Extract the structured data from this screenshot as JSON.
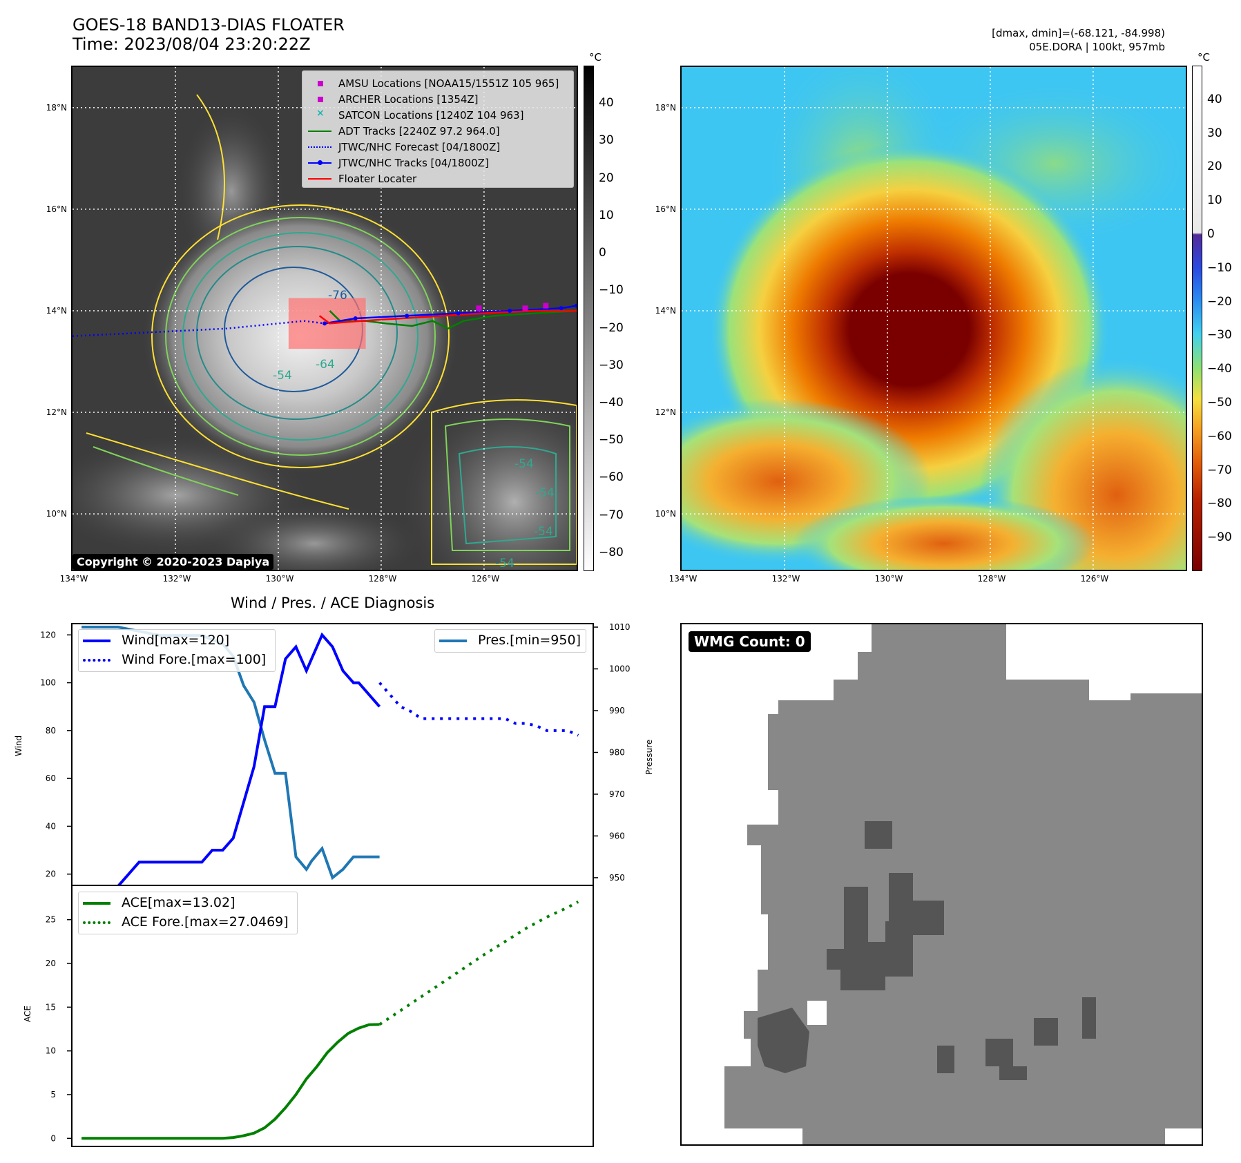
{
  "header": {
    "title_line1": "GOES-18 BAND13-DIAS FLOATER",
    "title_line2": "Time: 2023/08/04 23:20:22Z",
    "right_line1": "[dmax, dmin]=(-68.121, -84.998)",
    "right_line2": "05E.DORA | 100kt, 957mb"
  },
  "copyright": "Copyright © 2020-2023 Dapiya",
  "maps": {
    "lat_labels": [
      "18°N",
      "16°N",
      "14°N",
      "12°N",
      "10°N"
    ],
    "lat_values": [
      18,
      16,
      14,
      12,
      10
    ],
    "lon_labels": [
      "134°W",
      "132°W",
      "130°W",
      "128°W",
      "126°W"
    ],
    "lon_values": [
      -134,
      -132,
      -130,
      -128,
      -126
    ],
    "extent": {
      "lon_min": -134,
      "lon_max": -124.2,
      "lat_min": 8.9,
      "lat_max": 18.8
    },
    "unit": "°C",
    "gray_colorbar": {
      "range": [
        -85,
        50
      ],
      "ticks": [
        40,
        30,
        20,
        10,
        0,
        -10,
        -20,
        -30,
        -40,
        -50,
        -60,
        -70,
        -80
      ]
    },
    "color_colorbar": {
      "range": [
        -100,
        50
      ],
      "ticks": [
        40,
        30,
        20,
        10,
        0,
        -10,
        -20,
        -30,
        -40,
        -50,
        -60,
        -70,
        -80,
        -90
      ]
    },
    "contour_labels": [
      "-76",
      "-54",
      "-64",
      "-54",
      "-54",
      "-54",
      "-54"
    ],
    "legend": [
      {
        "label": "AMSU Locations [NOAA15/1551Z 105 965]",
        "color": "#cc00cc",
        "marker": "square"
      },
      {
        "label": "ARCHER Locations [1354Z]",
        "color": "#cc00cc",
        "marker": "square"
      },
      {
        "label": "SATCON Locations [1240Z 104 963]",
        "color": "#1fb8b0",
        "marker": "x"
      },
      {
        "label": "ADT Tracks [2240Z 97.2 964.0]",
        "color": "#008000",
        "marker": "line"
      },
      {
        "label": "JTWC/NHC Forecast [04/1800Z]",
        "color": "#0000ff",
        "marker": "dotted"
      },
      {
        "label": "JTWC/NHC Tracks [04/1800Z]",
        "color": "#0000ff",
        "marker": "line-dot"
      },
      {
        "label": "Floater Locater",
        "color": "#ff0000",
        "marker": "line"
      }
    ],
    "jtwc_track": [
      [
        -129.1,
        13.75
      ],
      [
        -128.5,
        13.85
      ],
      [
        -127.5,
        13.9
      ],
      [
        -126.5,
        13.95
      ],
      [
        -125.5,
        14.0
      ],
      [
        -124.5,
        14.05
      ],
      [
        -124.2,
        14.1
      ]
    ],
    "jtwc_forecast": [
      [
        -134,
        13.5
      ],
      [
        -133,
        13.55
      ],
      [
        -132,
        13.6
      ],
      [
        -131,
        13.65
      ],
      [
        -130,
        13.75
      ],
      [
        -129.5,
        13.8
      ],
      [
        -129.1,
        13.75
      ]
    ],
    "adt_track": [
      [
        -129.0,
        14.0
      ],
      [
        -128.8,
        13.8
      ],
      [
        -128.3,
        13.8
      ],
      [
        -127.9,
        13.75
      ],
      [
        -127.4,
        13.7
      ],
      [
        -127.0,
        13.8
      ],
      [
        -126.7,
        13.65
      ],
      [
        -126.4,
        13.8
      ],
      [
        -125.8,
        13.9
      ],
      [
        -125.0,
        13.95
      ],
      [
        -124.2,
        14.0
      ]
    ],
    "floater_track": [
      [
        -129.2,
        13.9
      ],
      [
        -129.0,
        13.75
      ],
      [
        -128.4,
        13.8
      ],
      [
        -127.6,
        13.85
      ],
      [
        -126.8,
        13.9
      ],
      [
        -126.0,
        13.95
      ],
      [
        -125.0,
        14.0
      ],
      [
        -124.2,
        14.0
      ]
    ],
    "floater_box": {
      "lon_min": -129.8,
      "lon_max": -128.3,
      "lat_min": 13.25,
      "lat_max": 14.25
    },
    "amsu_points": [
      [
        -126.1,
        14.05
      ],
      [
        -125.2,
        14.05
      ],
      [
        -124.8,
        14.1
      ]
    ]
  },
  "chart_data": [
    {
      "type": "line",
      "title": "Wind / Pres. / ACE Diagnosis",
      "ylabel": "Wind",
      "ylim": [
        15,
        125
      ],
      "yticks": [
        20,
        40,
        60,
        80,
        100,
        120
      ],
      "xlim": [
        0,
        100
      ],
      "series": [
        {
          "name": "Wind[max=120]",
          "style": "solid",
          "color": "#0000ff",
          "x": [
            2,
            7,
            9,
            13,
            17,
            21,
            25,
            27,
            29,
            31,
            33,
            35,
            37,
            39,
            41,
            43,
            45,
            46,
            48,
            50,
            52,
            54,
            55,
            57,
            59
          ],
          "y": [
            15,
            15,
            15,
            25,
            25,
            25,
            25,
            30,
            30,
            35,
            50,
            65,
            90,
            90,
            110,
            115,
            105,
            110,
            120,
            115,
            105,
            100,
            100,
            95,
            90
          ]
        },
        {
          "name": "Wind Fore.[max=100]",
          "style": "dotted",
          "color": "#0000ff",
          "x": [
            59,
            61,
            63,
            65,
            67,
            69,
            71,
            73,
            75,
            77,
            79,
            81,
            83,
            85,
            87,
            89,
            91,
            93,
            95,
            97
          ],
          "y": [
            100,
            95,
            90,
            88,
            85,
            85,
            85,
            85,
            85,
            85,
            85,
            85,
            85,
            83,
            83,
            82,
            80,
            80,
            80,
            78
          ]
        }
      ]
    },
    {
      "type": "line",
      "ylabel": "Pressure",
      "ylim": [
        948,
        1011
      ],
      "yticks": [
        950,
        960,
        970,
        980,
        990,
        1000,
        1010
      ],
      "series": [
        {
          "name": "Pres.[min=950]",
          "style": "solid",
          "color": "#1f77b4",
          "x": [
            2,
            7,
            9,
            13,
            17,
            21,
            25,
            27,
            29,
            31,
            33,
            35,
            37,
            39,
            41,
            43,
            45,
            46,
            48,
            50,
            52,
            54,
            55,
            57,
            59
          ],
          "y": [
            1010,
            1010,
            1010,
            1009,
            1008,
            1008,
            1008,
            1007,
            1006,
            1003,
            996,
            992,
            983,
            975,
            975,
            955,
            952,
            954,
            957,
            950,
            952,
            955,
            955,
            955,
            955
          ]
        }
      ]
    },
    {
      "type": "line",
      "ylabel": "ACE",
      "ylim": [
        -1,
        29
      ],
      "yticks": [
        0,
        5,
        10,
        15,
        20,
        25
      ],
      "series": [
        {
          "name": "ACE[max=13.02]",
          "style": "solid",
          "color": "#008000",
          "x": [
            2,
            10,
            20,
            25,
            29,
            31,
            33,
            35,
            37,
            39,
            41,
            43,
            45,
            47,
            49,
            51,
            53,
            55,
            57,
            59
          ],
          "y": [
            0,
            0,
            0,
            0,
            0,
            0.1,
            0.3,
            0.6,
            1.2,
            2.2,
            3.5,
            5.0,
            6.8,
            8.2,
            9.8,
            11.0,
            12.0,
            12.6,
            13.0,
            13.02
          ]
        },
        {
          "name": "ACE Fore.[max=27.0469]",
          "style": "dotted",
          "color": "#008000",
          "x": [
            59,
            63,
            67,
            71,
            75,
            79,
            83,
            87,
            91,
            95,
            97
          ],
          "y": [
            13.02,
            14.6,
            16.2,
            17.8,
            19.4,
            21.0,
            22.5,
            24.0,
            25.3,
            26.4,
            27.0469
          ]
        }
      ]
    }
  ],
  "wmg": {
    "label": "WMG Count: 0"
  }
}
